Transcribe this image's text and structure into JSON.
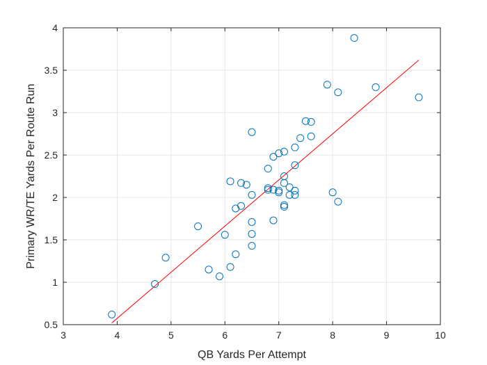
{
  "chart_data": {
    "type": "scatter",
    "title": "",
    "xlabel": "QB Yards Per Attempt",
    "ylabel": "Primary WR/TE Yards Per Route Run",
    "xlim": [
      3,
      10
    ],
    "ylim": [
      0.5,
      4
    ],
    "xticks": [
      3,
      4,
      5,
      6,
      7,
      8,
      9,
      10
    ],
    "yticks": [
      0.5,
      1,
      1.5,
      2,
      2.5,
      3,
      3.5,
      4
    ],
    "xtick_labels": [
      "3",
      "4",
      "5",
      "6",
      "7",
      "8",
      "9",
      "10"
    ],
    "ytick_labels": [
      "0.5",
      "1",
      "1.5",
      "2",
      "2.5",
      "3",
      "3.5",
      "4"
    ],
    "grid": true,
    "legend": "none",
    "series": [
      {
        "marker": "open-circle",
        "color": "#0072BD",
        "points": [
          [
            3.9,
            0.62
          ],
          [
            4.7,
            0.98
          ],
          [
            4.9,
            1.29
          ],
          [
            5.5,
            1.66
          ],
          [
            5.7,
            1.15
          ],
          [
            5.9,
            1.07
          ],
          [
            6.0,
            1.56
          ],
          [
            6.1,
            1.18
          ],
          [
            6.1,
            2.19
          ],
          [
            6.2,
            1.33
          ],
          [
            6.2,
            1.87
          ],
          [
            6.3,
            1.9
          ],
          [
            6.3,
            2.17
          ],
          [
            6.4,
            2.15
          ],
          [
            6.5,
            1.43
          ],
          [
            6.5,
            1.57
          ],
          [
            6.5,
            1.71
          ],
          [
            6.5,
            2.03
          ],
          [
            6.5,
            2.77
          ],
          [
            6.8,
            2.09
          ],
          [
            6.8,
            2.11
          ],
          [
            6.8,
            2.34
          ],
          [
            6.9,
            1.73
          ],
          [
            6.9,
            2.09
          ],
          [
            6.9,
            2.48
          ],
          [
            7.0,
            2.06
          ],
          [
            7.0,
            2.08
          ],
          [
            7.0,
            2.52
          ],
          [
            7.1,
            1.89
          ],
          [
            7.1,
            1.91
          ],
          [
            7.1,
            2.17
          ],
          [
            7.1,
            2.25
          ],
          [
            7.1,
            2.54
          ],
          [
            7.2,
            2.03
          ],
          [
            7.2,
            2.12
          ],
          [
            7.3,
            2.03
          ],
          [
            7.3,
            2.08
          ],
          [
            7.3,
            2.38
          ],
          [
            7.3,
            2.59
          ],
          [
            7.4,
            2.7
          ],
          [
            7.5,
            2.9
          ],
          [
            7.6,
            2.72
          ],
          [
            7.6,
            2.89
          ],
          [
            7.9,
            3.33
          ],
          [
            8.0,
            2.06
          ],
          [
            8.1,
            1.95
          ],
          [
            8.1,
            3.24
          ],
          [
            8.4,
            3.88
          ],
          [
            8.8,
            3.3
          ],
          [
            9.6,
            3.18
          ]
        ]
      }
    ],
    "trendline": {
      "color": "#FF0000",
      "x": [
        3.9,
        9.6
      ],
      "y": [
        0.52,
        3.62
      ]
    }
  }
}
